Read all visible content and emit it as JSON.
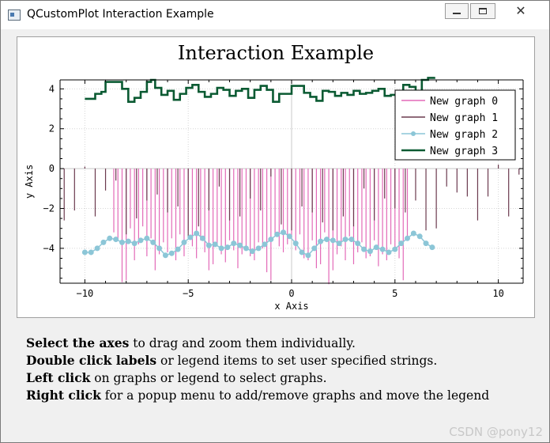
{
  "window": {
    "title": "QCustomPlot Interaction Example",
    "close_symbol": "✕"
  },
  "chart_data": {
    "type": "line",
    "title": "Interaction Example",
    "xlabel": "x Axis",
    "ylabel": "y Axis",
    "xlim": [
      -11.2,
      11.2
    ],
    "ylim": [
      -5.75,
      4.45
    ],
    "xticks": [
      -10,
      -5,
      0,
      5,
      10
    ],
    "yticks": [
      -4,
      -2,
      0,
      2,
      4
    ],
    "grid": true,
    "legend_position": "top-right",
    "series": [
      {
        "name": "New graph 0",
        "style": "impulse",
        "color": "#e36ab8",
        "x": [
          -8.6,
          -8.4,
          -8.2,
          -8.0,
          -7.8,
          -7.6,
          -7.4,
          -7.2,
          -7.0,
          -6.8,
          -6.6,
          -6.4,
          -6.2,
          -6.0,
          -5.8,
          -5.6,
          -5.4,
          -5.2,
          -5.0,
          -4.8,
          -4.6,
          -4.4,
          -4.2,
          -4.0,
          -3.8,
          -3.6,
          -3.4,
          -3.2,
          -3.0,
          -2.8,
          -2.6,
          -2.4,
          -2.2,
          -2.0,
          -1.8,
          -1.6,
          -1.4,
          -1.2,
          -1.0,
          -0.8,
          -0.6,
          -0.4,
          -0.2,
          0.0,
          0.2,
          0.4,
          0.6,
          0.8,
          1.0,
          1.2,
          1.4,
          1.6,
          1.8,
          2.0,
          2.2,
          2.4,
          2.6,
          2.8,
          3.0,
          3.2,
          3.4,
          3.6,
          3.8,
          4.0,
          4.2,
          4.4,
          4.6,
          4.8,
          5.0,
          5.2,
          5.4,
          5.6
        ],
        "values": [
          -3.2,
          -3.6,
          -5.7,
          -5.6,
          -3.0,
          -4.6,
          -3.8,
          -2.9,
          -4.4,
          -3.5,
          -5.1,
          -4.3,
          -3.7,
          -4.2,
          -3.5,
          -4.6,
          -3.3,
          -4.4,
          -3.1,
          -3.9,
          -4.5,
          -3.6,
          -4.2,
          -5.1,
          -4.8,
          -3.8,
          -4.3,
          -4.7,
          -3.6,
          -4.1,
          -5.0,
          -4.3,
          -3.9,
          -4.4,
          -4.6,
          -3.7,
          -4.0,
          -5.2,
          -5.6,
          -3.4,
          -3.9,
          -4.2,
          -3.8,
          -3.5,
          -4.1,
          -3.3,
          -4.5,
          -4.6,
          -3.6,
          -5.0,
          -4.8,
          -3.2,
          -5.8,
          -5.1,
          -4.3,
          -3.9,
          -4.6,
          -3.4,
          -4.8,
          -4.2,
          -3.7,
          -4.5,
          -4.4,
          -3.6,
          -4.9,
          -4.3,
          -4.6,
          -3.8,
          -4.0,
          -4.5,
          -5.6,
          -3.5
        ]
      },
      {
        "name": "New graph 1",
        "style": "impulse",
        "color": "#6b3a4e",
        "x": [
          -11.0,
          -10.5,
          -10.0,
          -9.5,
          -9.0,
          -8.5,
          -8.0,
          -7.5,
          -7.0,
          -6.5,
          -6.0,
          -5.5,
          -5.0,
          -4.5,
          -4.0,
          -3.5,
          -3.0,
          -2.5,
          -2.0,
          -1.5,
          -1.0,
          -0.5,
          0.0,
          0.5,
          1.0,
          1.5,
          2.0,
          2.5,
          3.0,
          3.5,
          4.0,
          4.5,
          5.0,
          5.5,
          6.0,
          6.5,
          7.0,
          7.5,
          8.0,
          8.5,
          9.0,
          9.5,
          10.0,
          10.5,
          11.0
        ],
        "values": [
          -2.6,
          -2.1,
          0.1,
          -2.4,
          -1.1,
          -0.6,
          -3.3,
          -2.5,
          -1.6,
          -1.3,
          -2.2,
          -1.9,
          -3.4,
          -2.9,
          -2.1,
          -0.9,
          -2.6,
          -2.4,
          -1.5,
          -2.1,
          -0.4,
          -2.8,
          -3.1,
          -1.9,
          -2.2,
          -2.7,
          -3.1,
          -2.4,
          -2.9,
          -1.0,
          -2.6,
          -1.5,
          -2.0,
          -2.2,
          -1.6,
          -3.1,
          -3.0,
          -0.9,
          -1.2,
          -1.4,
          -2.6,
          -1.4,
          0.2,
          -2.4,
          -0.3
        ]
      },
      {
        "name": "New graph 2",
        "style": "line-markers",
        "color": "#8cc6d7",
        "x": [
          -10.0,
          -9.7,
          -9.4,
          -9.1,
          -8.8,
          -8.5,
          -8.2,
          -7.9,
          -7.6,
          -7.3,
          -7.0,
          -6.7,
          -6.4,
          -6.1,
          -5.8,
          -5.5,
          -5.2,
          -4.9,
          -4.6,
          -4.3,
          -4.0,
          -3.7,
          -3.4,
          -3.1,
          -2.8,
          -2.5,
          -2.2,
          -1.9,
          -1.6,
          -1.3,
          -1.0,
          -0.7,
          -0.4,
          -0.1,
          0.2,
          0.5,
          0.8,
          1.1,
          1.4,
          1.7,
          2.0,
          2.3,
          2.6,
          2.9,
          3.2,
          3.5,
          3.8,
          4.1,
          4.4,
          4.7,
          5.0,
          5.3,
          5.6,
          5.9,
          6.2,
          6.5,
          6.8
        ],
        "values": [
          -4.2,
          -4.2,
          -4.0,
          -3.7,
          -3.5,
          -3.55,
          -3.7,
          -3.65,
          -3.75,
          -3.6,
          -3.5,
          -3.7,
          -4.0,
          -4.35,
          -4.25,
          -4.05,
          -3.7,
          -3.45,
          -3.25,
          -3.5,
          -3.85,
          -3.8,
          -4.0,
          -3.95,
          -3.75,
          -3.85,
          -4.0,
          -4.15,
          -4.0,
          -3.8,
          -3.55,
          -3.3,
          -3.2,
          -3.4,
          -3.75,
          -4.2,
          -4.35,
          -4.0,
          -3.65,
          -3.55,
          -3.6,
          -3.75,
          -3.55,
          -3.55,
          -3.75,
          -4.05,
          -4.15,
          -3.95,
          -4.05,
          -4.2,
          -4.05,
          -3.75,
          -3.5,
          -3.25,
          -3.4,
          -3.75,
          -3.95
        ]
      },
      {
        "name": "New graph 3",
        "style": "step",
        "color": "#0a5a32",
        "x": [
          -10.0,
          -9.5,
          -9.2,
          -9.0,
          -8.6,
          -8.2,
          -7.9,
          -7.6,
          -7.3,
          -7.0,
          -6.8,
          -6.6,
          -6.3,
          -6.0,
          -5.7,
          -5.4,
          -5.1,
          -4.8,
          -4.5,
          -4.2,
          -3.9,
          -3.6,
          -3.3,
          -3.0,
          -2.7,
          -2.4,
          -2.1,
          -1.8,
          -1.5,
          -1.2,
          -0.9,
          -0.6,
          -0.3,
          0.0,
          0.3,
          0.6,
          0.9,
          1.2,
          1.5,
          1.8,
          2.1,
          2.4,
          2.7,
          3.0,
          3.3,
          3.6,
          3.9,
          4.2,
          4.5,
          4.8,
          5.1,
          5.4,
          5.7,
          6.0,
          6.3,
          6.6,
          6.9
        ],
        "values": [
          3.5,
          3.75,
          3.85,
          4.35,
          4.35,
          4.0,
          3.35,
          3.55,
          3.85,
          4.35,
          4.45,
          4.05,
          3.7,
          3.9,
          3.45,
          3.75,
          4.05,
          4.2,
          3.85,
          3.6,
          3.75,
          4.05,
          3.95,
          3.65,
          3.9,
          4.0,
          3.55,
          3.95,
          4.15,
          3.95,
          3.35,
          3.75,
          3.75,
          4.15,
          4.15,
          3.8,
          3.6,
          3.4,
          3.9,
          3.85,
          3.65,
          3.8,
          3.7,
          3.9,
          3.75,
          3.8,
          3.9,
          4.0,
          3.65,
          3.7,
          3.9,
          4.2,
          4.1,
          3.65,
          4.45,
          4.55,
          4.6
        ]
      }
    ]
  },
  "instructions": [
    {
      "bold": "Select the axes",
      "rest": " to drag and zoom them individually."
    },
    {
      "bold": "Double click labels",
      "rest": " or legend items to set user specified strings."
    },
    {
      "bold": "Left click",
      "rest": " on graphs or legend to select graphs."
    },
    {
      "bold": "Right click",
      "rest": " for a popup menu to add/remove graphs and move the legend"
    }
  ],
  "watermark": "CSDN @pony12"
}
